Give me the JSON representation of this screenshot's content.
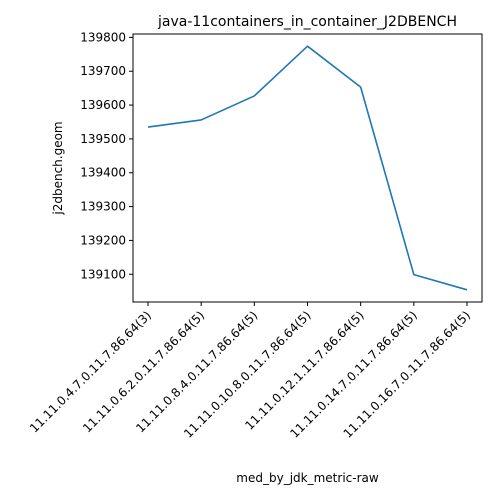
{
  "chart_data": {
    "type": "line",
    "title": "java-11containers_in_container_J2DBENCH",
    "xlabel": "med_by_jdk_metric-raw",
    "ylabel": "j2dbench.geom",
    "categories": [
      "11.11.0.4.7.0.11.7.86.64(3)",
      "11.11.0.6.2.0.11.7.86.64(5)",
      "11.11.0.8.4.0.11.7.86.64(5)",
      "11.11.0.10.8.0.11.7.86.64(5)",
      "11.11.0.12.1.11.7.86.64(5)",
      "11.11.0.14.7.0.11.7.86.64(5)",
      "11.11.0.16.7.0.11.7.86.64(5)"
    ],
    "series": [
      {
        "values": [
          139535,
          139556,
          139627,
          139774,
          139653,
          139099,
          139054
        ],
        "color": "#1f77b4"
      }
    ],
    "yticks": [
      139100,
      139200,
      139300,
      139400,
      139500,
      139600,
      139700,
      139800
    ],
    "ylim": [
      139018,
      139810
    ],
    "grid": false,
    "legend": "none"
  }
}
